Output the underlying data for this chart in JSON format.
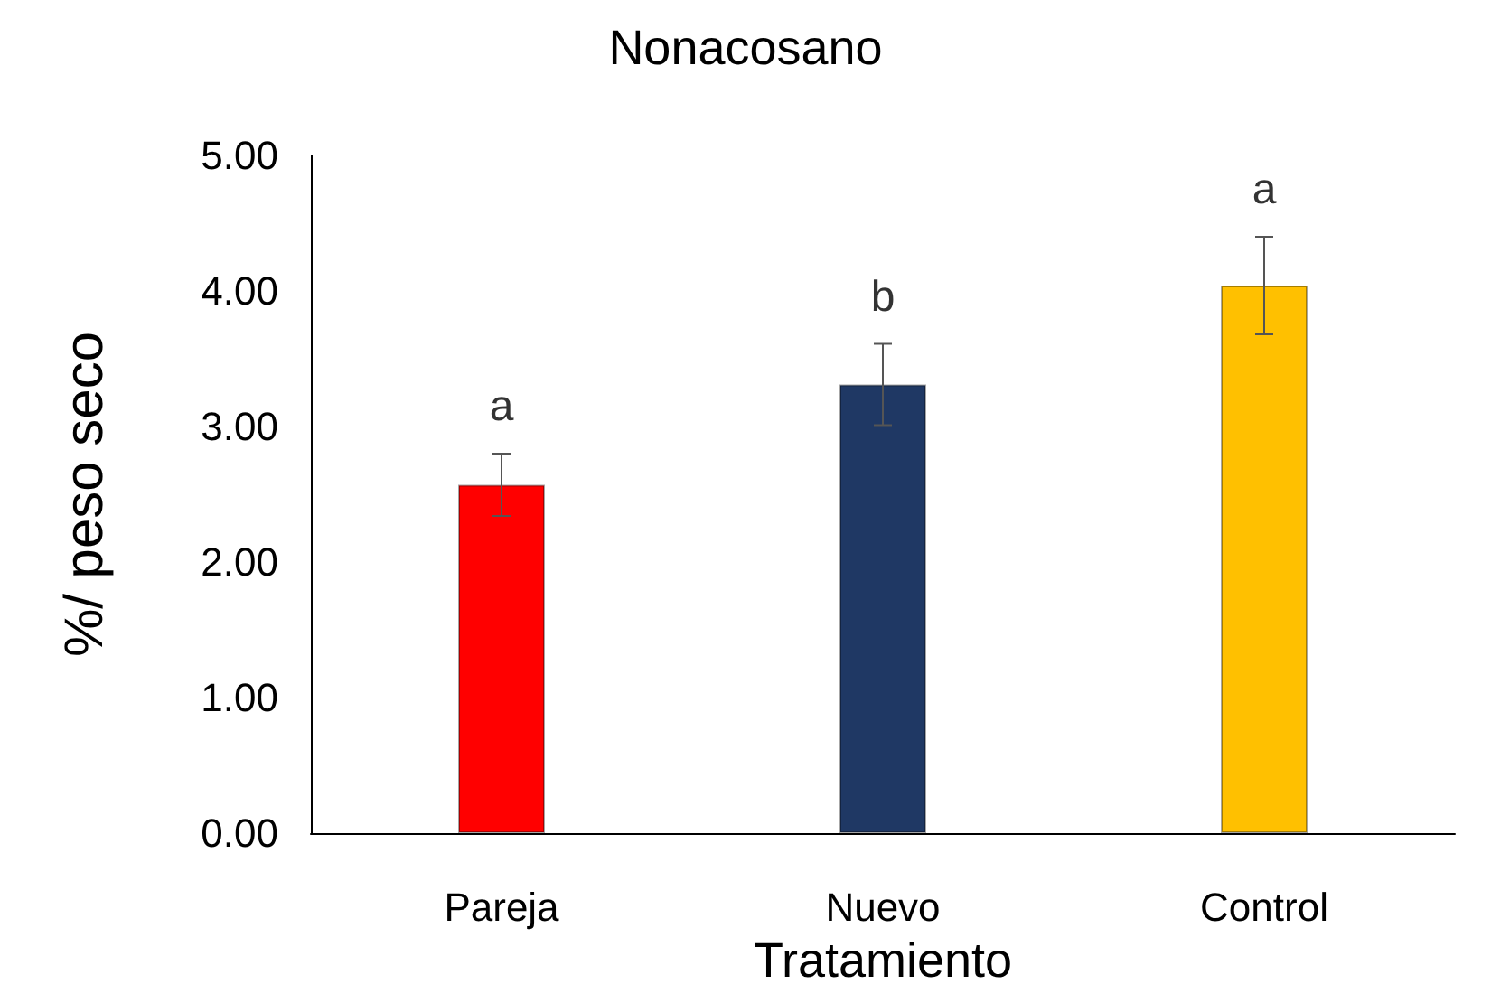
{
  "chart_data": {
    "type": "bar",
    "title": "Nonacosano",
    "xlabel": "Tratamiento",
    "ylabel": "%/ peso seco",
    "categories": [
      "Pareja",
      "Nuevo",
      "Control"
    ],
    "values": [
      2.57,
      3.31,
      4.04
    ],
    "errors": [
      0.23,
      0.3,
      0.36
    ],
    "colors": [
      "#ff0000",
      "#1f3864",
      "#ffc000"
    ],
    "ylim": [
      0,
      5
    ],
    "yticks": [
      {
        "value": 0,
        "label": "0.00"
      },
      {
        "value": 1,
        "label": "1.00"
      },
      {
        "value": 2,
        "label": "2.00"
      },
      {
        "value": 3,
        "label": "3.00"
      },
      {
        "value": 4,
        "label": "4.00"
      },
      {
        "value": 5,
        "label": "5.00"
      }
    ],
    "annotations": [
      "a",
      "b",
      "a"
    ],
    "grid": false
  }
}
